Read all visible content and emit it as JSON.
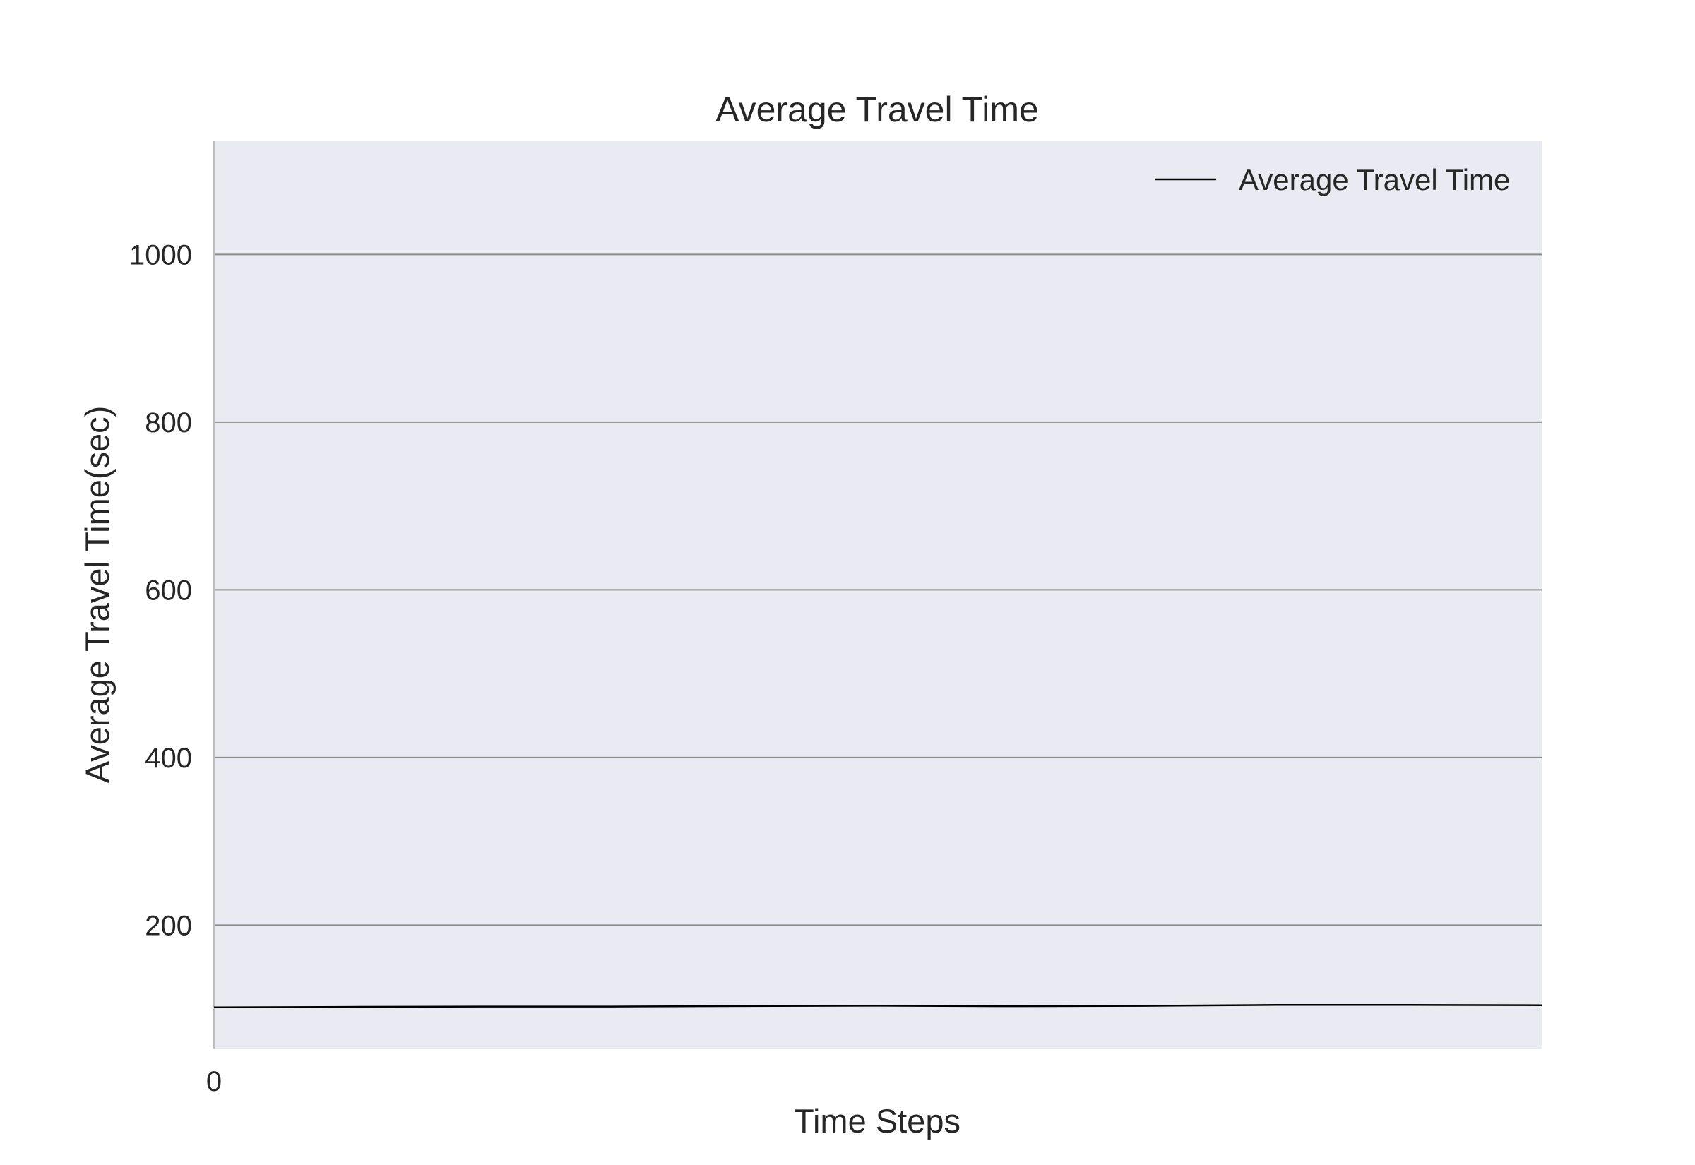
{
  "chart_data": {
    "type": "line",
    "title": "Average Travel Time",
    "xlabel": "Time Steps",
    "ylabel": "Average Travel Time(sec)",
    "xlim": [
      0,
      100
    ],
    "ylim": [
      53,
      1135
    ],
    "x_ticks": [
      0
    ],
    "y_ticks": [
      200,
      400,
      600,
      800,
      1000
    ],
    "grid": "horizontal",
    "legend": {
      "placement": "top-right"
    },
    "colors": {
      "plot_background": "#eaeaf2",
      "grid": "#8c8c8c",
      "line": "#000000"
    },
    "series": [
      {
        "name": "Average Travel Time",
        "x": [
          0,
          10,
          20,
          30,
          40,
          50,
          60,
          70,
          80,
          90,
          100
        ],
        "values": [
          102,
          102.6,
          103,
          103,
          103.6,
          104,
          103.4,
          103.8,
          105,
          105,
          104.6
        ]
      }
    ]
  }
}
